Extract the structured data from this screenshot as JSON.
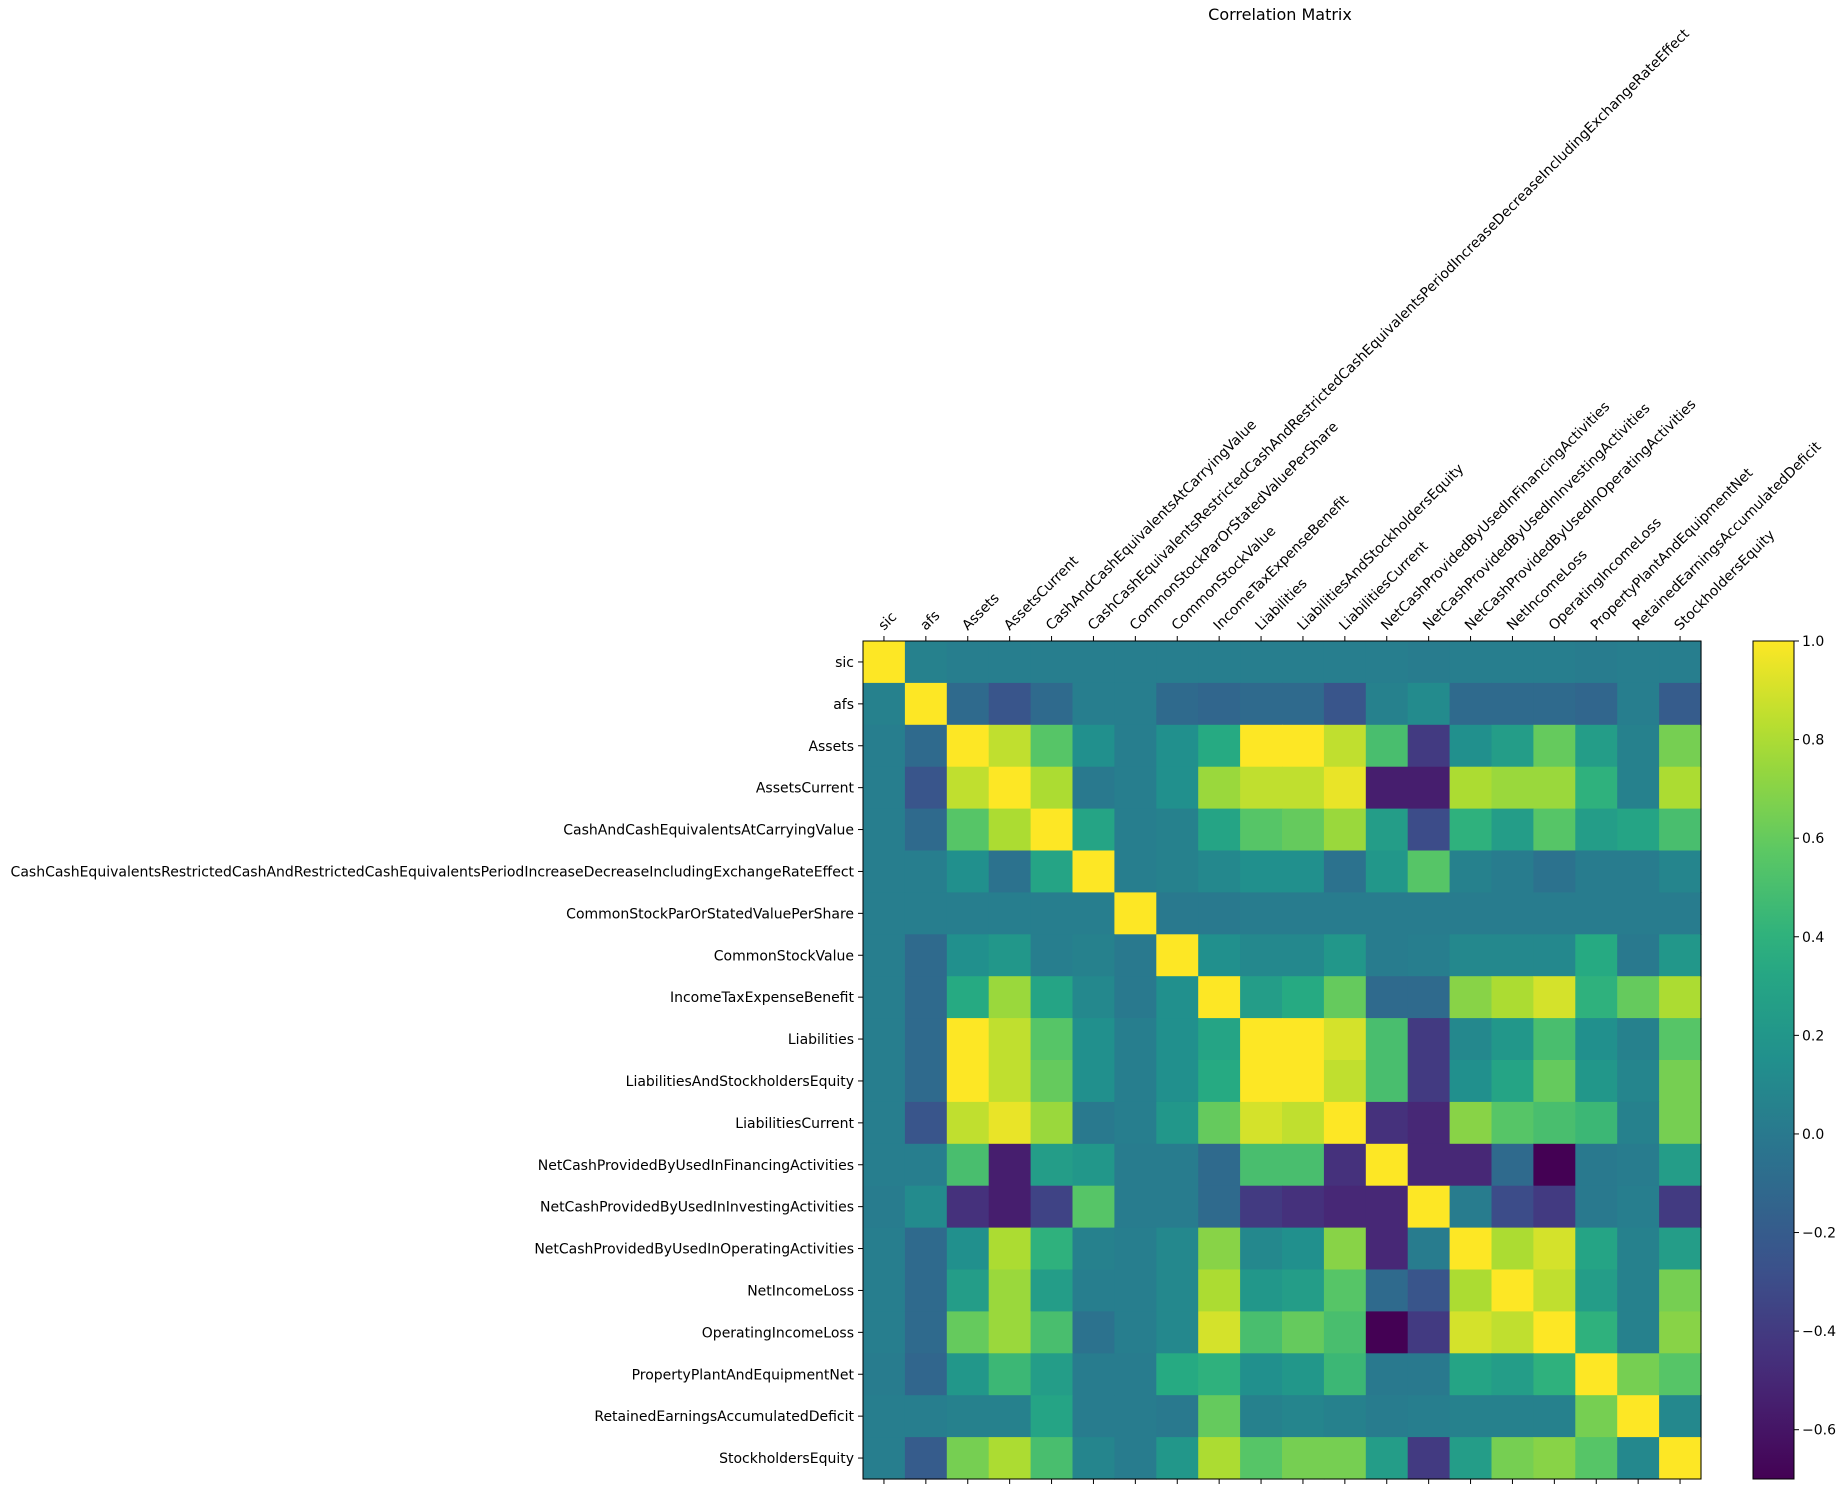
{
  "chart_data": {
    "type": "heatmap",
    "title": "Correlation Matrix",
    "labels": [
      "sic",
      "afs",
      "Assets",
      "AssetsCurrent",
      "CashAndCashEquivalentsAtCarryingValue",
      "CashCashEquivalentsRestrictedCashAndRestrictedCashEquivalentsPeriodIncreaseDecreaseIncludingExchangeRateEffect",
      "CommonStockParOrStatedValuePerShare",
      "CommonStockValue",
      "IncomeTaxExpenseBenefit",
      "Liabilities",
      "LiabilitiesAndStockholdersEquity",
      "LiabilitiesCurrent",
      "NetCashProvidedByUsedInFinancingActivities",
      "NetCashProvidedByUsedInInvestingActivities",
      "NetCashProvidedByUsedInOperatingActivities",
      "NetIncomeLoss",
      "OperatingIncomeLoss",
      "PropertyPlantAndEquipmentNet",
      "RetainedEarningsAccumulatedDeficit",
      "StockholdersEquity"
    ],
    "matrix": [
      [
        1.0,
        0.05,
        0.03,
        0.03,
        0.03,
        0.03,
        0.03,
        0.03,
        0.03,
        0.03,
        0.03,
        0.03,
        0.03,
        0.02,
        0.03,
        0.03,
        0.03,
        0.02,
        0.03,
        0.03
      ],
      [
        0.05,
        1.0,
        -0.1,
        -0.25,
        -0.1,
        0.03,
        0.03,
        -0.1,
        -0.13,
        -0.1,
        -0.1,
        -0.25,
        0.05,
        0.12,
        -0.1,
        -0.1,
        -0.1,
        -0.13,
        0.03,
        -0.2
      ],
      [
        0.03,
        -0.1,
        1.0,
        0.85,
        0.55,
        0.15,
        0.03,
        0.15,
        0.35,
        1.0,
        1.0,
        0.85,
        0.5,
        -0.4,
        0.15,
        0.25,
        0.6,
        0.25,
        0.05,
        0.65
      ],
      [
        0.03,
        -0.25,
        0.85,
        1.0,
        0.8,
        0.0,
        0.03,
        0.15,
        0.75,
        0.85,
        0.85,
        0.95,
        -0.55,
        -0.55,
        0.8,
        0.75,
        0.75,
        0.4,
        0.05,
        0.8
      ],
      [
        0.03,
        -0.1,
        0.55,
        0.8,
        1.0,
        0.3,
        0.03,
        0.05,
        0.3,
        0.55,
        0.6,
        0.75,
        0.25,
        -0.3,
        0.4,
        0.25,
        0.55,
        0.25,
        0.3,
        0.5
      ],
      [
        0.03,
        0.03,
        0.15,
        -0.05,
        0.3,
        1.0,
        0.03,
        0.05,
        0.1,
        0.15,
        0.15,
        -0.05,
        0.2,
        0.55,
        0.05,
        0.02,
        -0.05,
        0.02,
        0.02,
        0.08
      ],
      [
        0.03,
        0.03,
        0.03,
        0.03,
        0.03,
        0.03,
        1.0,
        0.0,
        0.0,
        0.02,
        0.02,
        0.02,
        0.02,
        0.02,
        0.02,
        0.02,
        0.02,
        0.02,
        0.02,
        0.02
      ],
      [
        0.03,
        -0.1,
        0.15,
        0.2,
        0.03,
        0.05,
        0.0,
        1.0,
        0.15,
        0.1,
        0.1,
        0.2,
        0.02,
        0.03,
        0.1,
        0.1,
        0.1,
        0.35,
        0.0,
        0.2
      ],
      [
        0.03,
        -0.1,
        0.35,
        0.75,
        0.3,
        0.1,
        0.0,
        0.15,
        1.0,
        0.25,
        0.35,
        0.6,
        -0.1,
        -0.1,
        0.7,
        0.8,
        0.9,
        0.4,
        0.6,
        0.8
      ],
      [
        0.03,
        -0.1,
        1.0,
        0.85,
        0.55,
        0.15,
        0.03,
        0.15,
        0.3,
        1.0,
        1.0,
        0.9,
        0.5,
        -0.4,
        0.1,
        0.2,
        0.5,
        0.15,
        0.05,
        0.55
      ],
      [
        0.03,
        -0.1,
        1.0,
        0.85,
        0.6,
        0.15,
        0.03,
        0.15,
        0.35,
        1.0,
        1.0,
        0.85,
        0.5,
        -0.4,
        0.15,
        0.3,
        0.6,
        0.2,
        0.08,
        0.65
      ],
      [
        0.03,
        -0.25,
        0.85,
        0.95,
        0.75,
        0.0,
        0.03,
        0.2,
        0.6,
        0.9,
        0.85,
        1.0,
        -0.45,
        -0.5,
        0.7,
        0.55,
        0.5,
        0.45,
        0.05,
        0.65
      ],
      [
        0.03,
        0.03,
        0.5,
        -0.55,
        0.25,
        0.2,
        0.02,
        0.02,
        -0.1,
        0.5,
        0.5,
        -0.45,
        1.0,
        -0.5,
        -0.5,
        -0.1,
        -0.7,
        0.0,
        0.02,
        0.25
      ],
      [
        0.02,
        0.12,
        -0.45,
        -0.55,
        -0.35,
        0.55,
        0.02,
        0.02,
        -0.1,
        -0.4,
        -0.45,
        -0.5,
        -0.5,
        1.0,
        0.02,
        -0.3,
        -0.4,
        0.0,
        0.03,
        -0.4
      ],
      [
        0.03,
        -0.1,
        0.15,
        0.8,
        0.4,
        0.05,
        0.03,
        0.1,
        0.7,
        0.1,
        0.15,
        0.7,
        -0.5,
        0.02,
        1.0,
        0.8,
        0.9,
        0.3,
        0.05,
        0.25
      ],
      [
        0.03,
        -0.1,
        0.25,
        0.75,
        0.25,
        0.03,
        0.03,
        0.1,
        0.8,
        0.2,
        0.25,
        0.55,
        -0.1,
        -0.25,
        0.8,
        1.0,
        0.85,
        0.25,
        0.05,
        0.65
      ],
      [
        0.03,
        -0.1,
        0.6,
        0.75,
        0.5,
        -0.05,
        0.03,
        0.1,
        0.9,
        0.5,
        0.6,
        0.5,
        -0.7,
        -0.4,
        0.9,
        0.85,
        1.0,
        0.4,
        0.05,
        0.7
      ],
      [
        0.02,
        -0.13,
        0.2,
        0.45,
        0.25,
        0.02,
        0.02,
        0.35,
        0.4,
        0.15,
        0.2,
        0.45,
        0.0,
        0.0,
        0.3,
        0.25,
        0.4,
        1.0,
        0.65,
        0.55
      ],
      [
        0.03,
        0.03,
        0.05,
        0.05,
        0.3,
        0.02,
        0.02,
        0.0,
        0.6,
        0.05,
        0.08,
        0.05,
        0.02,
        0.03,
        0.05,
        0.05,
        0.05,
        0.65,
        1.0,
        0.1
      ],
      [
        0.03,
        -0.2,
        0.65,
        0.8,
        0.5,
        0.08,
        0.02,
        0.2,
        0.8,
        0.55,
        0.65,
        0.65,
        0.25,
        -0.4,
        0.25,
        0.65,
        0.7,
        0.55,
        0.1,
        1.0
      ]
    ],
    "colorbar": {
      "min": -0.7,
      "max": 1.0,
      "ticks": [
        "-0.6",
        "-0.4",
        "-0.2",
        "0.0",
        "0.2",
        "0.4",
        "0.6",
        "0.8",
        "1.0"
      ],
      "colormap": "viridis"
    }
  }
}
